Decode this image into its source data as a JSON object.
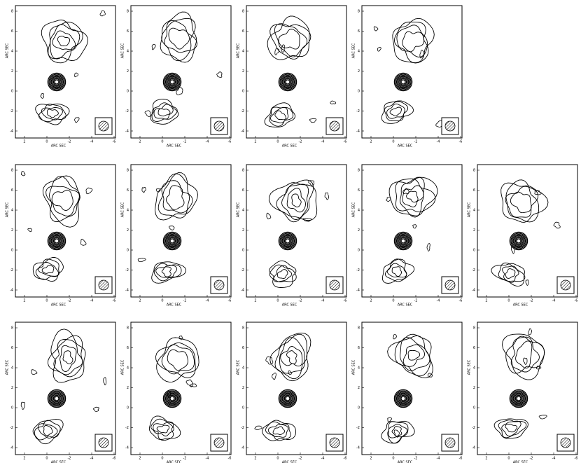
{
  "figure": {
    "panels": [
      {
        "x_label": "ARC SEC",
        "y_label": "ARC SEC",
        "xticks": [
          2,
          0,
          -2,
          -4,
          -6
        ],
        "yticks": [
          8,
          6,
          4,
          2,
          0,
          -2,
          -4
        ]
      },
      {
        "x_label": "ARC SEC",
        "y_label": "ARC SEC",
        "xticks": [
          2,
          0,
          -2,
          -4,
          -6
        ],
        "yticks": [
          8,
          6,
          4,
          2,
          0,
          -2,
          -4
        ]
      },
      {
        "x_label": "ARC SEC",
        "y_label": "ARC SEC",
        "xticks": [
          2,
          0,
          -2,
          -4,
          -6
        ],
        "yticks": [
          8,
          6,
          4,
          2,
          0,
          -2,
          -4
        ]
      },
      {
        "x_label": "ARC SEC",
        "y_label": "ARC SEC",
        "xticks": [
          2,
          0,
          -2,
          -4,
          -6
        ],
        "yticks": [
          8,
          6,
          4,
          2,
          0,
          -2,
          -4
        ]
      },
      {
        "x_label": "ARC SEC",
        "y_label": "ARC SEC",
        "xticks": [
          2,
          0,
          -2,
          -4,
          -6
        ],
        "yticks": [
          8,
          6,
          4,
          2,
          0,
          -2,
          -4
        ]
      },
      {
        "x_label": "ARC SEC",
        "y_label": "ARC SEC",
        "xticks": [
          2,
          0,
          -2,
          -4,
          -6
        ],
        "yticks": [
          8,
          6,
          4,
          2,
          0,
          -2,
          -4
        ]
      },
      {
        "x_label": "ARC SEC",
        "y_label": "ARC SEC",
        "xticks": [
          2,
          0,
          -2,
          -4,
          -6
        ],
        "yticks": [
          8,
          6,
          4,
          2,
          0,
          -2,
          -4
        ]
      },
      {
        "x_label": "ARC SEC",
        "y_label": "ARC SEC",
        "xticks": [
          2,
          0,
          -2,
          -4,
          -6
        ],
        "yticks": [
          8,
          6,
          4,
          2,
          0,
          -2,
          -4
        ]
      },
      {
        "x_label": "ARC SEC",
        "y_label": "ARC SEC",
        "xticks": [
          2,
          0,
          -2,
          -4,
          -6
        ],
        "yticks": [
          8,
          6,
          4,
          2,
          0,
          -2,
          -4
        ]
      },
      {
        "x_label": "ARC SEC",
        "y_label": "ARC SEC",
        "xticks": [
          2,
          0,
          -2,
          -4,
          -6
        ],
        "yticks": [
          8,
          6,
          4,
          2,
          0,
          -2,
          -4
        ]
      },
      {
        "x_label": "ARC SEC",
        "y_label": "ARC SEC",
        "xticks": [
          2,
          0,
          -2,
          -4,
          -6
        ],
        "yticks": [
          8,
          6,
          4,
          2,
          0,
          -2,
          -4
        ]
      },
      {
        "x_label": "ARC SEC",
        "y_label": "ARC SEC",
        "xticks": [
          2,
          0,
          -2,
          -4,
          -6
        ],
        "yticks": [
          8,
          6,
          4,
          2,
          0,
          -2,
          -4
        ]
      },
      {
        "x_label": "ARC SEC",
        "y_label": "ARC SEC",
        "xticks": [
          2,
          0,
          -2,
          -4,
          -6
        ],
        "yticks": [
          8,
          6,
          4,
          2,
          0,
          -2,
          -4
        ]
      },
      {
        "x_label": "ARC SEC",
        "y_label": "ARC SEC",
        "xticks": [
          2,
          0,
          -2,
          -4,
          -6
        ],
        "yticks": [
          8,
          6,
          4,
          2,
          0,
          -2,
          -4
        ]
      }
    ]
  }
}
